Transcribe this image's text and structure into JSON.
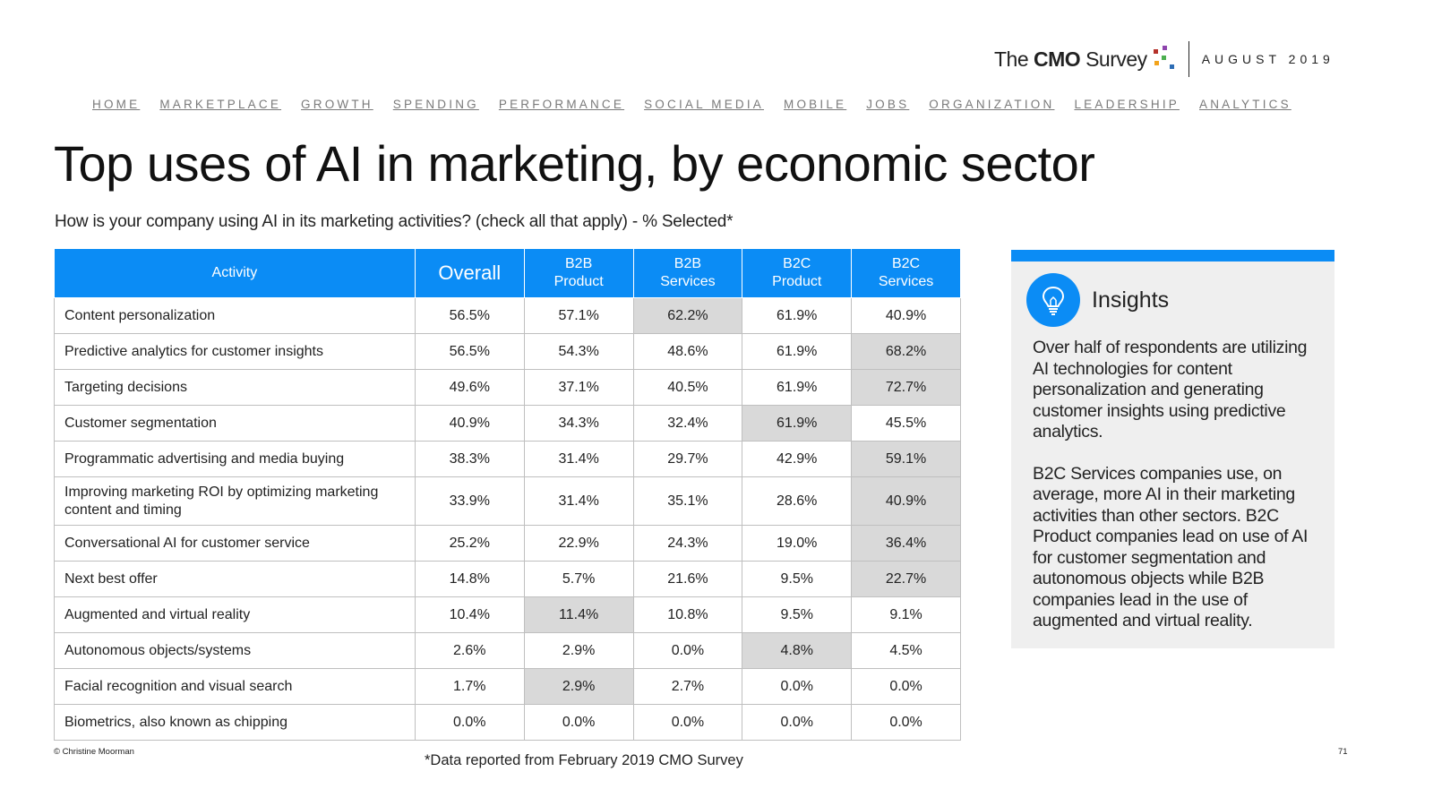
{
  "brand": {
    "logo_prefix": "The ",
    "logo_bold": "CMO",
    "logo_suffix": " Survey",
    "date": "AUGUST 2019",
    "dot_colors": [
      "#b5322b",
      "#4caf50",
      "#f2a31b",
      "#2d6db5",
      "#8e44ad"
    ]
  },
  "nav": [
    "HOME",
    "MARKETPLACE",
    "GROWTH",
    "SPENDING",
    "PERFORMANCE",
    "SOCIAL MEDIA",
    "MOBILE",
    "JOBS",
    "ORGANIZATION",
    "LEADERSHIP",
    "ANALYTICS"
  ],
  "title": "Top uses of AI in marketing, by economic sector",
  "subtitle": "How is your company using AI in its marketing activities? (check all that apply) - % Selected*",
  "table": {
    "headers": {
      "activity": "Activity",
      "overall": "Overall",
      "sectors": [
        {
          "line1": "B2B",
          "line2": "Product"
        },
        {
          "line1": "B2B",
          "line2": "Services"
        },
        {
          "line1": "B2C",
          "line2": "Product"
        },
        {
          "line1": "B2C",
          "line2": "Services"
        }
      ]
    },
    "rows": [
      {
        "activity": "Content personalization",
        "overall": "56.5%",
        "values": [
          "57.1%",
          "62.2%",
          "61.9%",
          "40.9%"
        ],
        "highlight": 1
      },
      {
        "activity": "Predictive analytics for customer insights",
        "overall": "56.5%",
        "values": [
          "54.3%",
          "48.6%",
          "61.9%",
          "68.2%"
        ],
        "highlight": 3
      },
      {
        "activity": "Targeting decisions",
        "overall": "49.6%",
        "values": [
          "37.1%",
          "40.5%",
          "61.9%",
          "72.7%"
        ],
        "highlight": 3
      },
      {
        "activity": "Customer segmentation",
        "overall": "40.9%",
        "values": [
          "34.3%",
          "32.4%",
          "61.9%",
          "45.5%"
        ],
        "highlight": 2
      },
      {
        "activity": "Programmatic advertising and media buying",
        "overall": "38.3%",
        "values": [
          "31.4%",
          "29.7%",
          "42.9%",
          "59.1%"
        ],
        "highlight": 3
      },
      {
        "activity": "Improving marketing ROI by optimizing marketing content and timing",
        "overall": "33.9%",
        "values": [
          "31.4%",
          "35.1%",
          "28.6%",
          "40.9%"
        ],
        "highlight": 3,
        "tall": true
      },
      {
        "activity": "Conversational AI for customer service",
        "overall": "25.2%",
        "values": [
          "22.9%",
          "24.3%",
          "19.0%",
          "36.4%"
        ],
        "highlight": 3
      },
      {
        "activity": "Next best offer",
        "overall": "14.8%",
        "values": [
          "5.7%",
          "21.6%",
          "9.5%",
          "22.7%"
        ],
        "highlight": 3
      },
      {
        "activity": "Augmented and virtual reality",
        "overall": "10.4%",
        "values": [
          "11.4%",
          "10.8%",
          "9.5%",
          "9.1%"
        ],
        "highlight": 0
      },
      {
        "activity": "Autonomous objects/systems",
        "overall": "2.6%",
        "values": [
          "2.9%",
          "0.0%",
          "4.8%",
          "4.5%"
        ],
        "highlight": 2
      },
      {
        "activity": "Facial recognition and visual search",
        "overall": "1.7%",
        "values": [
          "2.9%",
          "2.7%",
          "0.0%",
          "0.0%"
        ],
        "highlight": 0
      },
      {
        "activity": "Biometrics, also known as chipping",
        "overall": "0.0%",
        "values": [
          "0.0%",
          "0.0%",
          "0.0%",
          "0.0%"
        ],
        "highlight": -1
      }
    ]
  },
  "insights": {
    "title": "Insights",
    "paragraphs": [
      "Over half of respondents are utilizing AI technologies for content personalization and generating customer insights using predictive analytics.",
      "B2C Services companies use, on average, more AI in their marketing activities than other sectors. B2C Product companies lead on use of AI for customer segmentation and autonomous objects while B2B companies lead in the use of augmented and virtual reality."
    ]
  },
  "footer": {
    "copyright": "© Christine Moorman",
    "footnote": "*Data reported from February 2019 CMO Survey",
    "page": "71"
  }
}
